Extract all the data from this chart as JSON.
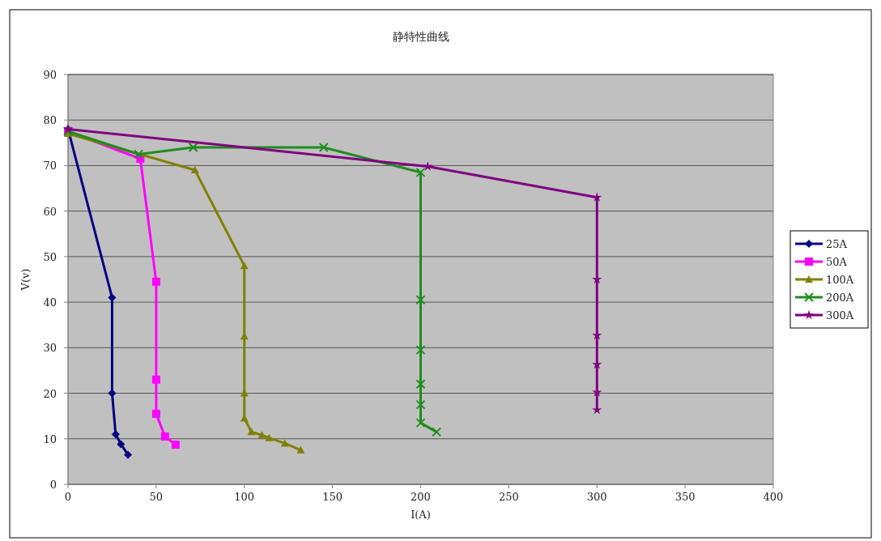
{
  "chart_data": {
    "type": "line",
    "title": "静特性曲线",
    "xlabel": "I(A)",
    "ylabel": "V(v)",
    "xlim": [
      0,
      400
    ],
    "xticks": [
      0,
      50,
      100,
      150,
      200,
      250,
      300,
      350,
      400
    ],
    "ylim": [
      0,
      90
    ],
    "yticks": [
      0,
      10,
      20,
      30,
      40,
      50,
      60,
      70,
      80,
      90
    ],
    "grid": "y",
    "legend": "right",
    "line_style": "solid",
    "series": [
      {
        "name": "25A",
        "color": "#000080",
        "marker": "diamond",
        "x": [
          0,
          25,
          25,
          27,
          30,
          34
        ],
        "values": [
          78,
          41,
          20,
          11,
          8.8,
          6.5
        ]
      },
      {
        "name": "50A",
        "color": "#ff00ff",
        "marker": "square",
        "x": [
          0,
          41,
          50,
          50,
          50,
          55,
          61
        ],
        "values": [
          77.5,
          71.5,
          44.5,
          23,
          15.5,
          10.5,
          8.7
        ]
      },
      {
        "name": "100A",
        "color": "#808000",
        "marker": "triangle",
        "x": [
          0,
          72,
          100,
          100,
          100,
          100,
          104,
          110,
          114,
          123,
          132
        ],
        "values": [
          77,
          69,
          48,
          32.5,
          20,
          14.5,
          11.5,
          10.8,
          10.2,
          9,
          7.5
        ]
      },
      {
        "name": "200A",
        "color": "#1f8c1f",
        "marker": "cross",
        "x": [
          0,
          40,
          71,
          145,
          200,
          200,
          200,
          200,
          200,
          200,
          209
        ],
        "values": [
          77.5,
          72.5,
          74,
          74,
          68.5,
          40.5,
          29.5,
          22,
          17.5,
          13.5,
          11.5
        ]
      },
      {
        "name": "300A",
        "color": "#800080",
        "marker": "star",
        "x": [
          0,
          204,
          300,
          300,
          300,
          300,
          300,
          300
        ],
        "values": [
          78,
          69.8,
          63,
          45,
          32.7,
          26.3,
          20.2,
          16.3
        ]
      }
    ]
  }
}
